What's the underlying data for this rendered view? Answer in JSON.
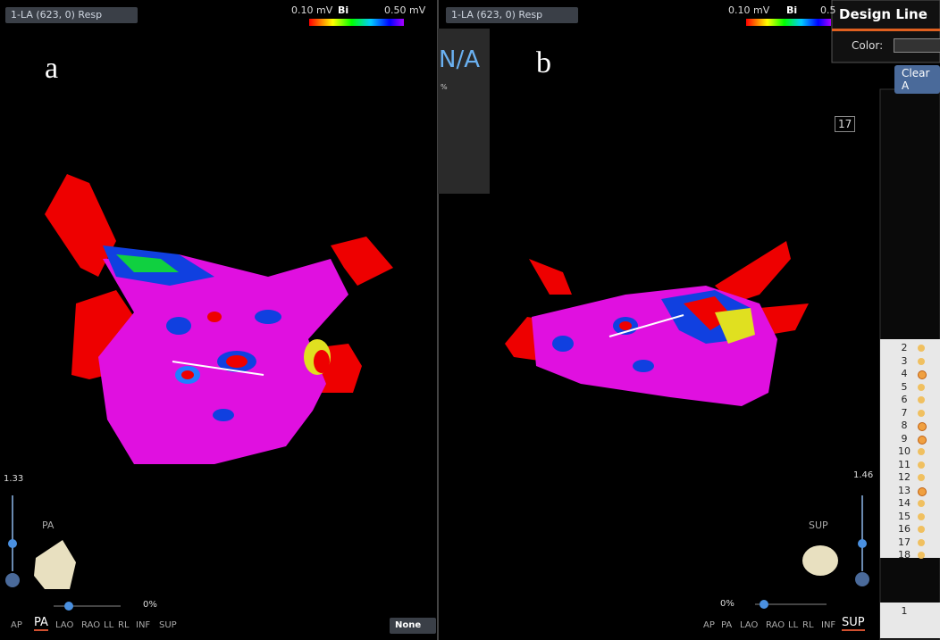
{
  "panels": [
    {
      "label": "a",
      "dropdown": "1-LA (623, 0) Resp",
      "colorbar": {
        "min": "0.10 mV",
        "mode": "Bi",
        "max": "0.50 mV"
      },
      "zoom_level": "1.33",
      "view_name": "PA",
      "zoom_percent": "0%",
      "views": [
        {
          "label": "AP",
          "active": false
        },
        {
          "label": "PA",
          "active": true
        },
        {
          "label": "LAO",
          "active": false
        },
        {
          "label": "RAO",
          "active": false
        },
        {
          "label": "LL",
          "active": false
        },
        {
          "label": "RL",
          "active": false
        },
        {
          "label": "INF",
          "active": false
        },
        {
          "label": "SUP",
          "active": false
        }
      ],
      "selector": "None"
    },
    {
      "label": "b",
      "dropdown": "1-LA (623, 0) Resp",
      "colorbar": {
        "min": "0.10 mV",
        "mode": "Bi",
        "max": "0.5"
      },
      "zoom_level": "1.46",
      "view_name": "SUP",
      "zoom_percent": "0%",
      "views": [
        {
          "label": "AP",
          "active": false
        },
        {
          "label": "PA",
          "active": false
        },
        {
          "label": "LAO",
          "active": false
        },
        {
          "label": "RAO",
          "active": false
        },
        {
          "label": "LL",
          "active": false
        },
        {
          "label": "RL",
          "active": false
        },
        {
          "label": "INF",
          "active": false
        },
        {
          "label": "SUP",
          "active": true
        }
      ],
      "tool": {
        "value": "N/A",
        "unit": "%"
      }
    }
  ],
  "design_line": {
    "title": "Design Line",
    "color_label": "Color:",
    "button": "Clear A"
  },
  "point_list": {
    "counter": "17",
    "rows": [
      {
        "id": "2",
        "checked": false
      },
      {
        "id": "3",
        "checked": false
      },
      {
        "id": "4",
        "checked": true
      },
      {
        "id": "5",
        "checked": false
      },
      {
        "id": "6",
        "checked": false
      },
      {
        "id": "7",
        "checked": false
      },
      {
        "id": "8",
        "checked": true
      },
      {
        "id": "9",
        "checked": true
      },
      {
        "id": "10",
        "checked": false
      },
      {
        "id": "11",
        "checked": false
      },
      {
        "id": "12",
        "checked": false
      },
      {
        "id": "13",
        "checked": true
      },
      {
        "id": "14",
        "checked": false
      },
      {
        "id": "15",
        "checked": false
      },
      {
        "id": "16",
        "checked": false
      },
      {
        "id": "17",
        "checked": false
      },
      {
        "id": "18",
        "checked": false
      }
    ],
    "bottom_rows": [
      "1"
    ]
  }
}
